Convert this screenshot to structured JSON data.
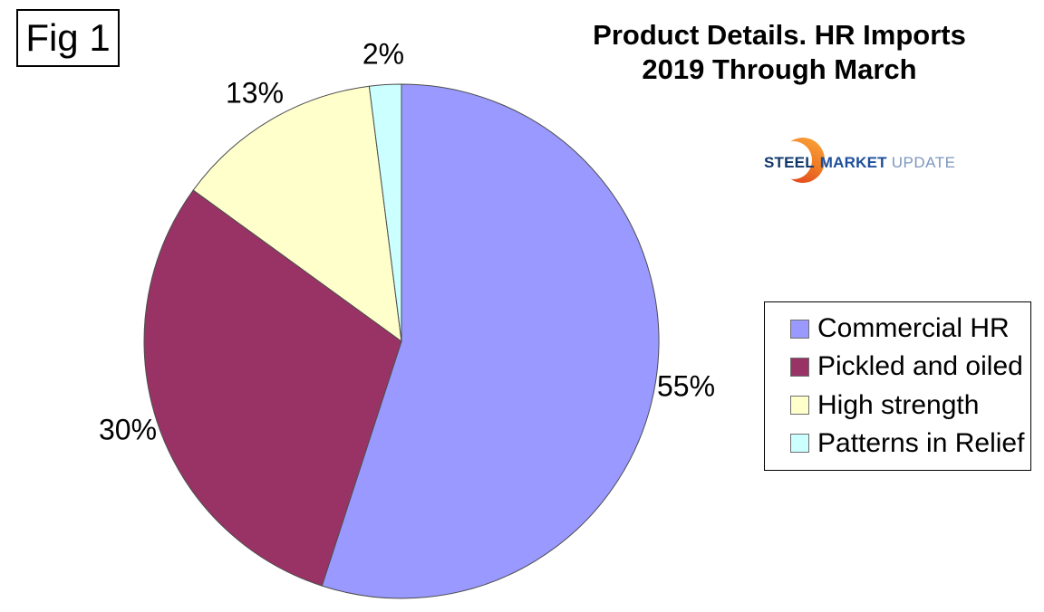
{
  "figure_label": "Fig 1",
  "title": {
    "line1": "Product Details. HR Imports",
    "line2": "2019 Through March"
  },
  "logo": {
    "steel": "STEEL",
    "market": "MARKET",
    "update": "UPDATE",
    "steel_color": "#11386b",
    "market_color": "#1e4f9c",
    "update_color": "#7e96c0",
    "crescent_colors": [
      "#f9a23a",
      "#e0441d"
    ]
  },
  "chart_data": {
    "type": "pie",
    "title": "Product Details. HR Imports 2019 Through March",
    "start_angle_deg": 0,
    "direction": "clockwise",
    "legend_position": "right",
    "slice_border_color": "#4d4d4d",
    "slices": [
      {
        "label": "Commercial HR",
        "value": 55,
        "pct_label": "55%",
        "color": "#9999FF"
      },
      {
        "label": "Pickled and oiled",
        "value": 30,
        "pct_label": "30%",
        "color": "#993366"
      },
      {
        "label": "High strength",
        "value": 13,
        "pct_label": "13%",
        "color": "#FFFFCC"
      },
      {
        "label": "Patterns in Relief",
        "value": 2,
        "pct_label": "2%",
        "color": "#CCFFFF"
      }
    ]
  }
}
